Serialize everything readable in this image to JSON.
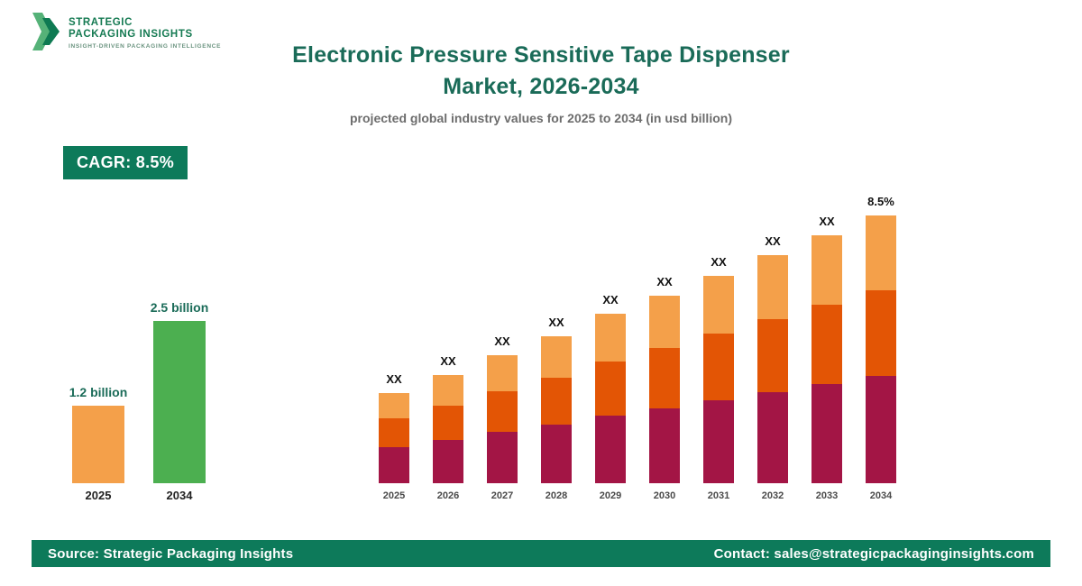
{
  "logo": {
    "line1": "STRATEGIC",
    "line2": "PACKAGING INSIGHTS",
    "tagline": "INSIGHT-DRIVEN PACKAGING INTELLIGENCE"
  },
  "header": {
    "title_line1": "Electronic Pressure Sensitive Tape Dispenser",
    "title_line2": "Market, 2026-2034",
    "subtitle": "projected global industry values for 2025 to 2034 (in usd billion)"
  },
  "cagr_badge": "CAGR: 8.5%",
  "colors": {
    "brand_green": "#0d7a5a",
    "title_green": "#1a6b58",
    "maroon": "#a31545",
    "dark_orange": "#e35505",
    "light_orange": "#f4a04a",
    "summary_green": "#4caf50"
  },
  "chart_data": [
    {
      "name": "market-size-summary",
      "type": "bar",
      "categories": [
        "2025",
        "2034"
      ],
      "values": [
        1.2,
        2.5
      ],
      "value_labels": [
        "1.2 billion",
        "2.5 billion"
      ],
      "bar_colors": [
        "#f4a04a",
        "#4caf50"
      ],
      "unit": "usd billion"
    },
    {
      "name": "projected-values-by-year",
      "type": "bar",
      "stacked": true,
      "categories": [
        "2025",
        "2026",
        "2027",
        "2028",
        "2029",
        "2030",
        "2031",
        "2032",
        "2033",
        "2034"
      ],
      "series": [
        {
          "name": "bottom-segment",
          "color": "#a31545",
          "values": [
            4.0,
            4.8,
            5.7,
            6.5,
            7.5,
            8.3,
            9.2,
            10.1,
            11.0,
            11.9
          ]
        },
        {
          "name": "middle-segment",
          "color": "#e35505",
          "values": [
            3.2,
            3.8,
            4.5,
            5.2,
            6.0,
            6.7,
            7.4,
            8.1,
            8.8,
            9.5
          ]
        },
        {
          "name": "top-segment",
          "color": "#f4a04a",
          "values": [
            2.8,
            3.4,
            4.0,
            4.6,
            5.3,
            5.8,
            6.4,
            7.1,
            7.7,
            8.3
          ]
        }
      ],
      "bar_labels": [
        "XX",
        "XX",
        "XX",
        "XX",
        "XX",
        "XX",
        "XX",
        "XX",
        "XX",
        "8.5%"
      ],
      "note": "numeric values hidden as XX on chart; series values are relative estimates from bar heights"
    }
  ],
  "footer": {
    "source": "Source: Strategic Packaging Insights",
    "contact": "Contact: sales@strategicpackaginginsights.com"
  }
}
